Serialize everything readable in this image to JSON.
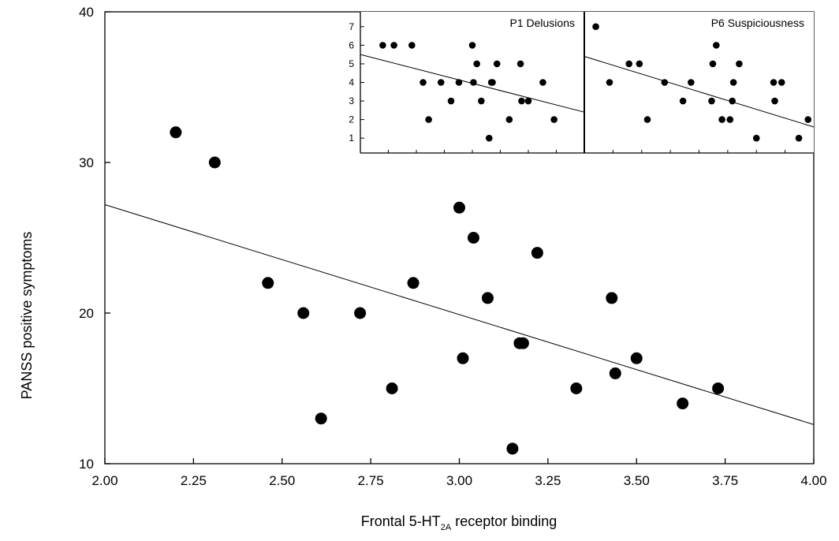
{
  "chart_data": {
    "type": "scatter",
    "xlabel": {
      "main": "Frontal 5-HT",
      "sub": "2A",
      "suffix": " receptor binding"
    },
    "ylabel": "PANSS positive symptoms",
    "xlim": [
      2.0,
      4.0
    ],
    "ylim": [
      10,
      40
    ],
    "x_ticks": [
      "2.00",
      "2.25",
      "2.50",
      "2.75",
      "3.00",
      "3.25",
      "3.50",
      "3.75",
      "4.00"
    ],
    "y_ticks": [
      "10",
      "20",
      "30",
      "40"
    ],
    "points": [
      {
        "x": 2.2,
        "y": 32
      },
      {
        "x": 2.31,
        "y": 30
      },
      {
        "x": 2.46,
        "y": 22
      },
      {
        "x": 2.56,
        "y": 20
      },
      {
        "x": 2.61,
        "y": 13
      },
      {
        "x": 2.72,
        "y": 20
      },
      {
        "x": 2.81,
        "y": 15
      },
      {
        "x": 2.87,
        "y": 22
      },
      {
        "x": 3.0,
        "y": 27
      },
      {
        "x": 3.01,
        "y": 17
      },
      {
        "x": 3.04,
        "y": 25
      },
      {
        "x": 3.08,
        "y": 21
      },
      {
        "x": 3.15,
        "y": 11
      },
      {
        "x": 3.17,
        "y": 18
      },
      {
        "x": 3.18,
        "y": 18
      },
      {
        "x": 3.22,
        "y": 24
      },
      {
        "x": 3.33,
        "y": 15
      },
      {
        "x": 3.43,
        "y": 21
      },
      {
        "x": 3.44,
        "y": 16
      },
      {
        "x": 3.5,
        "y": 17
      },
      {
        "x": 3.63,
        "y": 14
      },
      {
        "x": 3.73,
        "y": 15
      }
    ],
    "regression": [
      {
        "x": 2.0,
        "y": 27.2
      },
      {
        "x": 4.0,
        "y": 12.6
      }
    ],
    "insets": [
      {
        "title": "P1 Delusions",
        "y_ticks": [
          "1",
          "2",
          "3",
          "4",
          "5",
          "6",
          "7"
        ],
        "ylim": [
          0.2,
          7.8
        ],
        "points": [
          {
            "x": 2.2,
            "y": 6
          },
          {
            "x": 2.3,
            "y": 6
          },
          {
            "x": 2.46,
            "y": 6
          },
          {
            "x": 2.56,
            "y": 4
          },
          {
            "x": 2.61,
            "y": 2
          },
          {
            "x": 2.72,
            "y": 4
          },
          {
            "x": 2.81,
            "y": 3
          },
          {
            "x": 2.88,
            "y": 4
          },
          {
            "x": 3.0,
            "y": 6
          },
          {
            "x": 3.01,
            "y": 4
          },
          {
            "x": 3.04,
            "y": 5
          },
          {
            "x": 3.08,
            "y": 3
          },
          {
            "x": 3.15,
            "y": 1
          },
          {
            "x": 3.17,
            "y": 4
          },
          {
            "x": 3.18,
            "y": 4
          },
          {
            "x": 3.22,
            "y": 5
          },
          {
            "x": 3.33,
            "y": 2
          },
          {
            "x": 3.43,
            "y": 5
          },
          {
            "x": 3.44,
            "y": 3
          },
          {
            "x": 3.5,
            "y": 3
          },
          {
            "x": 3.63,
            "y": 4
          },
          {
            "x": 3.73,
            "y": 2
          }
        ],
        "regression": [
          {
            "x": 2.0,
            "y": 5.5
          },
          {
            "x": 4.0,
            "y": 2.4
          }
        ]
      },
      {
        "title": "P6 Suspiciousness",
        "y_ticks": [],
        "ylim": [
          0.2,
          7.8
        ],
        "points": [
          {
            "x": 2.1,
            "y": 7
          },
          {
            "x": 2.22,
            "y": 4
          },
          {
            "x": 2.39,
            "y": 5
          },
          {
            "x": 2.48,
            "y": 5
          },
          {
            "x": 2.55,
            "y": 2
          },
          {
            "x": 2.7,
            "y": 4
          },
          {
            "x": 2.86,
            "y": 3
          },
          {
            "x": 2.93,
            "y": 4
          },
          {
            "x": 3.11,
            "y": 3
          },
          {
            "x": 3.12,
            "y": 5
          },
          {
            "x": 3.15,
            "y": 6
          },
          {
            "x": 3.2,
            "y": 2
          },
          {
            "x": 3.27,
            "y": 2
          },
          {
            "x": 3.29,
            "y": 3
          },
          {
            "x": 3.3,
            "y": 4
          },
          {
            "x": 3.35,
            "y": 5
          },
          {
            "x": 3.5,
            "y": 1
          },
          {
            "x": 3.65,
            "y": 4
          },
          {
            "x": 3.66,
            "y": 3
          },
          {
            "x": 3.72,
            "y": 4
          },
          {
            "x": 3.87,
            "y": 1
          },
          {
            "x": 3.95,
            "y": 2
          }
        ],
        "regression": [
          {
            "x": 2.0,
            "y": 5.4
          },
          {
            "x": 4.0,
            "y": 1.6
          }
        ]
      }
    ]
  }
}
